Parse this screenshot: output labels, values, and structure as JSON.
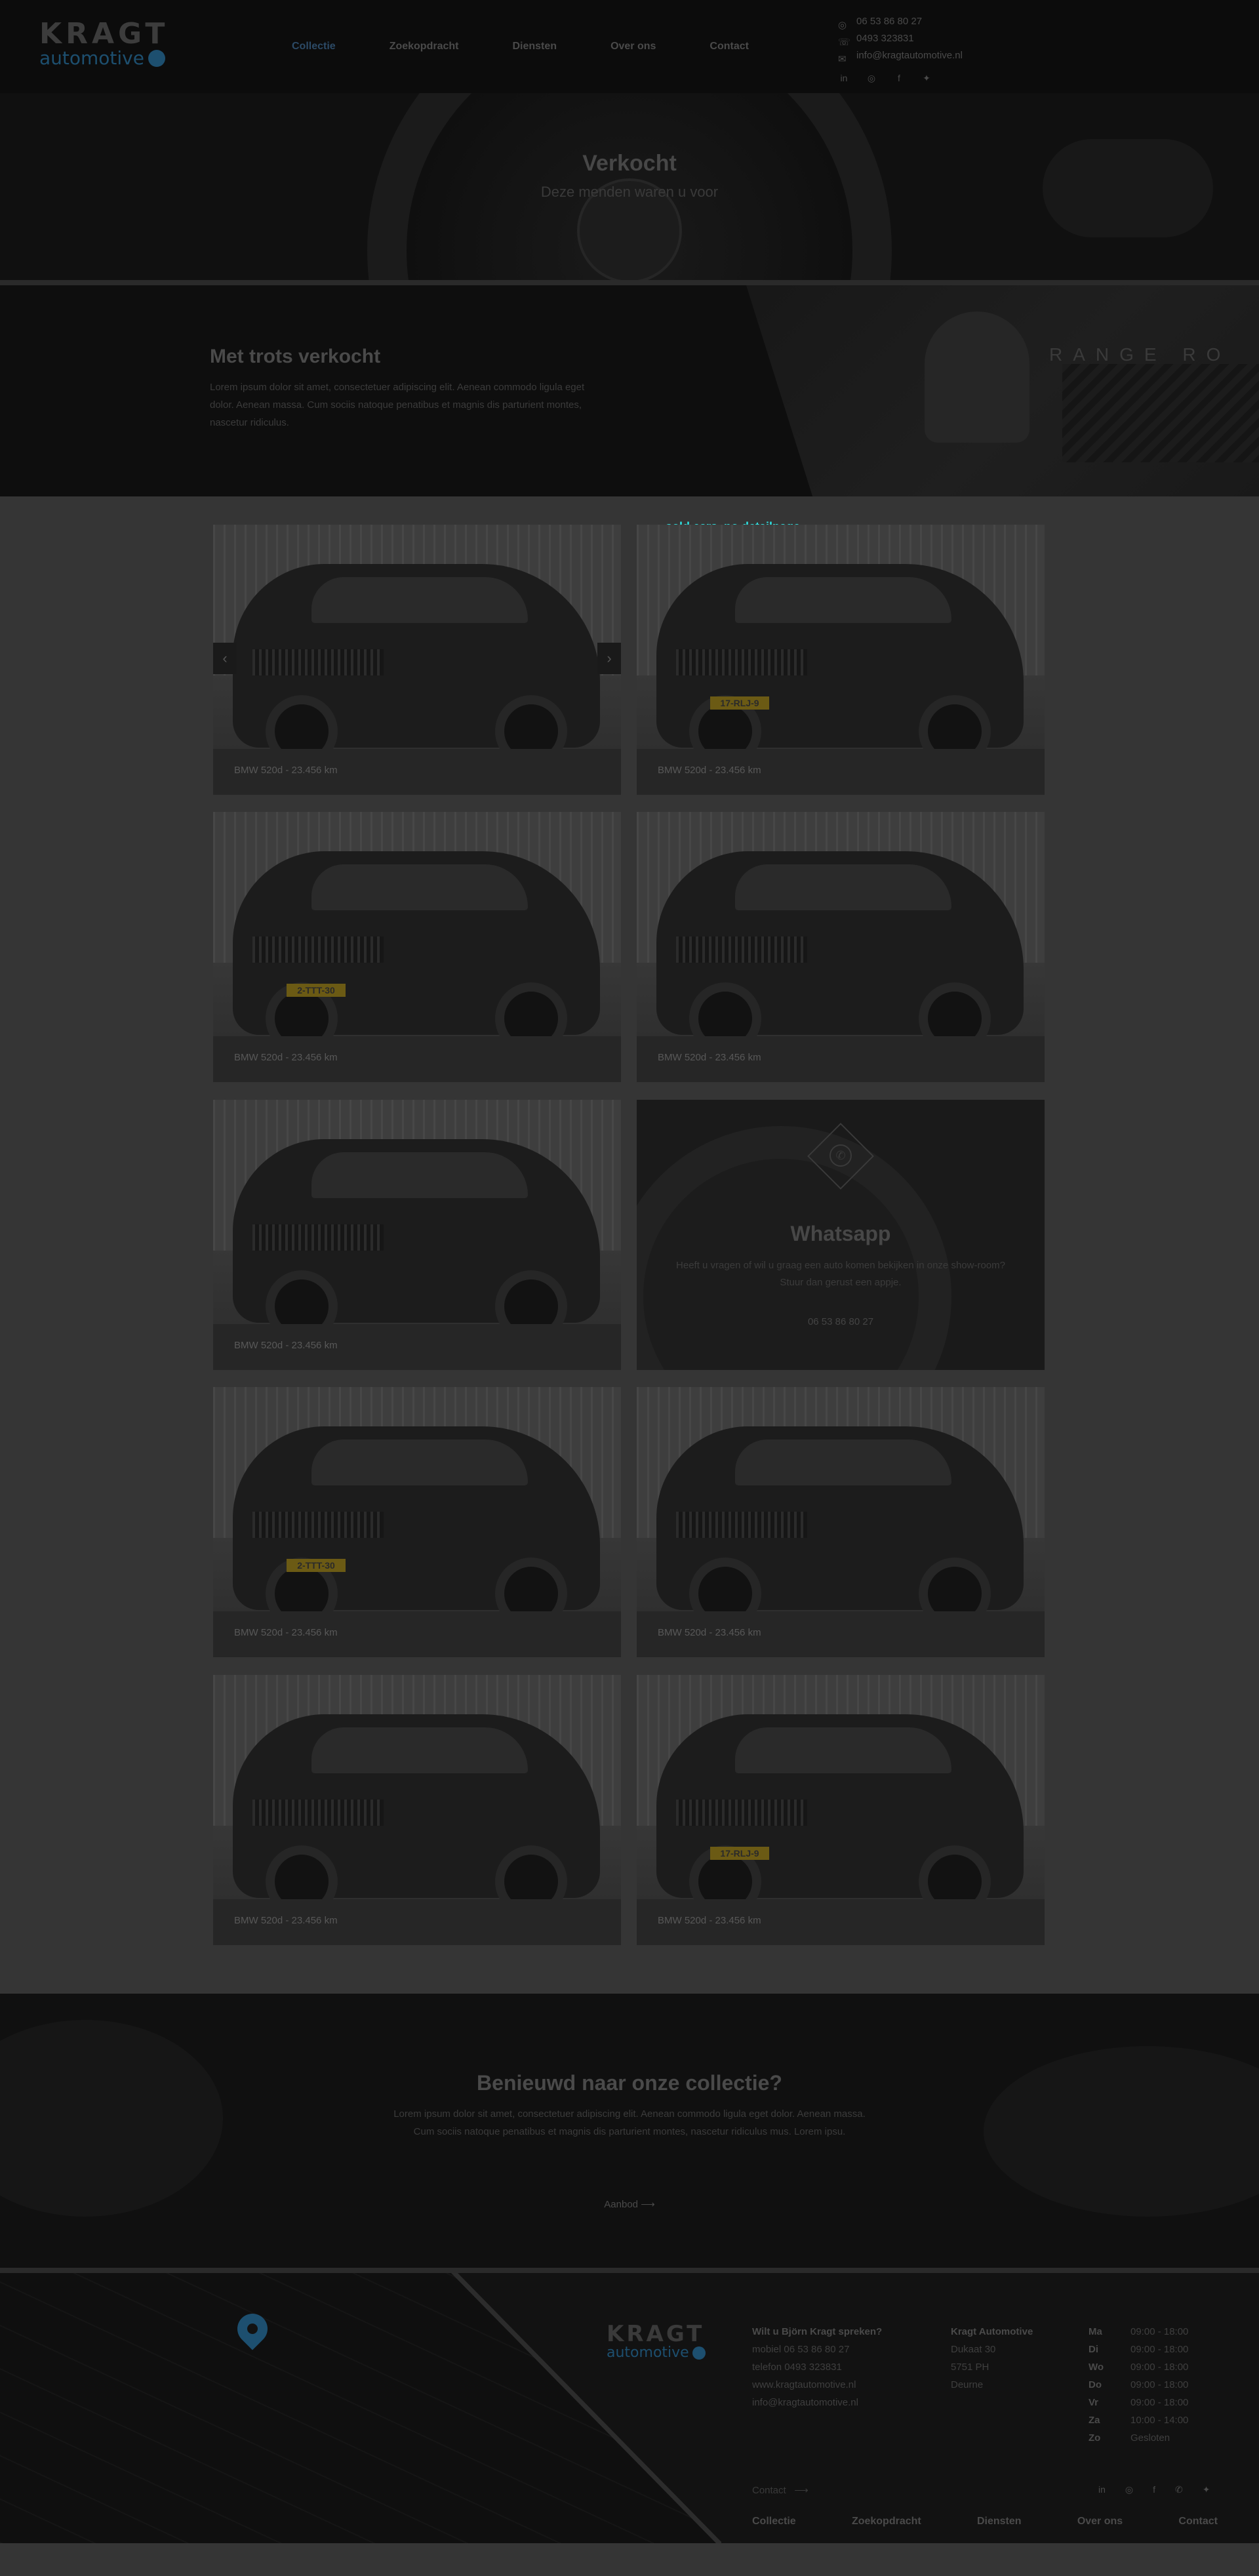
{
  "header": {
    "logo_top": "KRAGT",
    "logo_bottom": "automotive",
    "nav": [
      "Collectie",
      "Zoekopdracht",
      "Diensten",
      "Over ons",
      "Contact"
    ],
    "whatsapp": "06 53 86 80 27",
    "phone": "0493 323831",
    "email": "info@kragtautomotive.nl"
  },
  "hero": {
    "title": "Verkocht",
    "subtitle": "Deze menden waren u voor"
  },
  "intro": {
    "title": "Met trots verkocht",
    "text": "Lorem ipsum dolor sit amet, consectetuer adipiscing elit. Aenean commodo ligula eget dolor. Aenean massa. Cum sociis natoque penatibus et magnis dis parturient montes, nascetur ridiculus.",
    "brand_text": "RANGE RO"
  },
  "annotation": "sold cars, no detailpage",
  "cars": [
    {
      "caption": "BMW 520d - 23.456 km",
      "plate": ""
    },
    {
      "caption": "BMW 520d - 23.456 km",
      "plate": "17-RLJ-9"
    },
    {
      "caption": "BMW 520d - 23.456 km",
      "plate": "2-TTT-30"
    },
    {
      "caption": "BMW 520d - 23.456 km",
      "plate": ""
    },
    {
      "caption": "BMW 520d - 23.456 km",
      "plate": ""
    },
    {
      "caption": "BMW 520d - 23.456 km",
      "plate": "2-TTT-30"
    },
    {
      "caption": "BMW 520d - 23.456 km",
      "plate": ""
    },
    {
      "caption": "BMW 520d - 23.456 km",
      "plate": ""
    },
    {
      "caption": "BMW 520d - 23.456 km",
      "plate": "17-RLJ-9"
    }
  ],
  "whatsapp_card": {
    "title": "Whatsapp",
    "text": "Heeft u vragen of wil u graag een auto komen bekijken in onze show-room? Stuur dan gerust een appje.",
    "phone": "06 53 86 80 27"
  },
  "cta": {
    "title": "Benieuwd naar onze collectie?",
    "text": "Lorem ipsum dolor sit amet, consectetuer adipiscing elit. Aenean commodo ligula eget dolor. Aenean massa. Cum sociis natoque penatibus et magnis dis parturient montes, nascetur ridiculus mus. Lorem ipsu.",
    "button": "Aanbod"
  },
  "footer": {
    "logo_top": "KRAGT",
    "logo_bottom": "automotive",
    "contact_heading": "Wilt u Björn Kragt spreken?",
    "mobiel": "mobiel 06 53 86 80 27",
    "telefoon": "telefon 0493 323831",
    "website": "www.kragtautomotive.nl",
    "email": "info@kragtautomotive.nl",
    "company": "Kragt Automotive",
    "street": "Dukaat 30",
    "zip": "5751 PH",
    "city": "Deurne",
    "hours": [
      {
        "day": "Ma",
        "time": "09:00 - 18:00"
      },
      {
        "day": "Di",
        "time": "09:00 - 18:00"
      },
      {
        "day": "Wo",
        "time": "09:00 - 18:00"
      },
      {
        "day": "Do",
        "time": "09:00 - 18:00"
      },
      {
        "day": "Vr",
        "time": "09:00 - 18:00"
      },
      {
        "day": "Za",
        "time": "10:00 - 14:00"
      },
      {
        "day": "Zo",
        "time": "Gesloten"
      }
    ],
    "contact_link": "Contact",
    "nav": [
      "Collectie",
      "Zoekopdracht",
      "Diensten",
      "Over ons",
      "Contact"
    ]
  }
}
